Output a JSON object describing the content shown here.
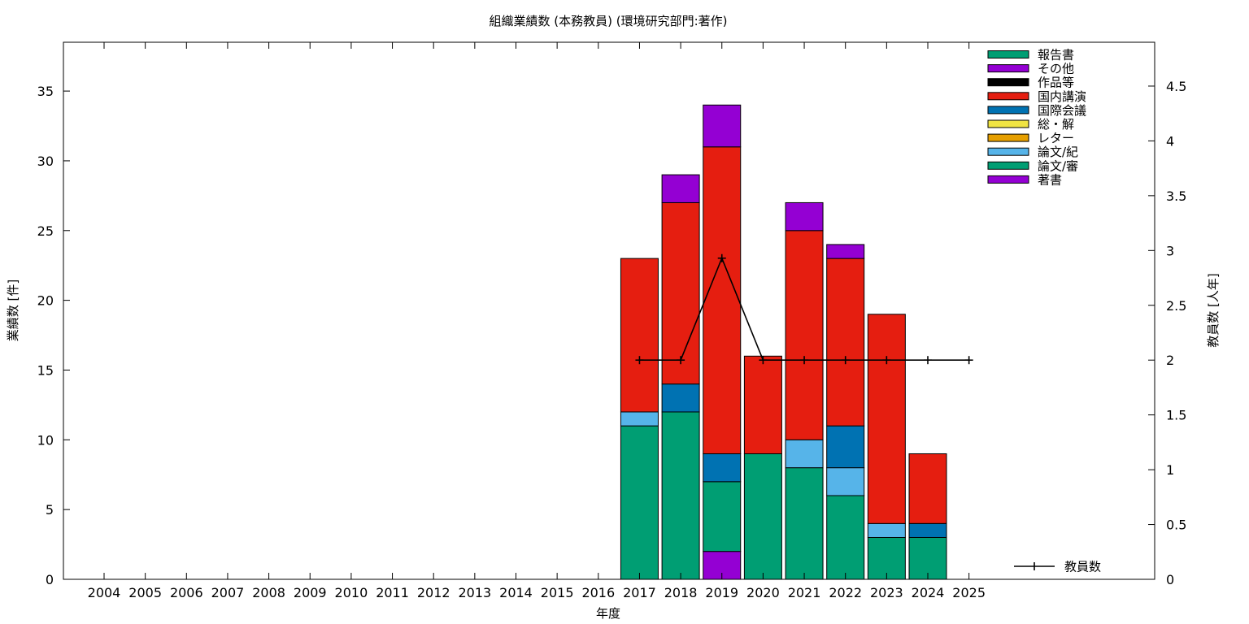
{
  "chart_data": {
    "type": "bar",
    "title": "組織業績数 (本務教員) (環境研究部門:著作)",
    "xlabel": "年度",
    "ylabel": "業績数 [件]",
    "y2label": "教員数 [人年]",
    "categories": [
      "2004",
      "2005",
      "2006",
      "2007",
      "2008",
      "2009",
      "2010",
      "2011",
      "2012",
      "2013",
      "2014",
      "2015",
      "2016",
      "2017",
      "2018",
      "2019",
      "2020",
      "2021",
      "2022",
      "2023",
      "2024",
      "2025"
    ],
    "ylim": [
      0,
      38.5
    ],
    "yticks": [
      0,
      5,
      10,
      15,
      20,
      25,
      30,
      35
    ],
    "y2lim": [
      0,
      4.9
    ],
    "y2ticks": [
      "0",
      "0.5",
      "1",
      "1.5",
      "2",
      "2.5",
      "3",
      "3.5",
      "4",
      "4.5"
    ],
    "stacked": true,
    "legend_position": "top-right",
    "series": [
      {
        "name": "著書",
        "color": "#9400d3",
        "values": [
          0,
          0,
          0,
          0,
          0,
          0,
          0,
          0,
          0,
          0,
          0,
          0,
          0,
          0,
          0,
          2,
          0,
          0,
          0,
          0,
          0,
          0
        ]
      },
      {
        "name": "論文/審",
        "color": "#009e73",
        "values": [
          0,
          0,
          0,
          0,
          0,
          0,
          0,
          0,
          0,
          0,
          0,
          0,
          0,
          11,
          12,
          5,
          9,
          8,
          6,
          3,
          3,
          0
        ]
      },
      {
        "name": "論文/紀",
        "color": "#56b4e9",
        "values": [
          0,
          0,
          0,
          0,
          0,
          0,
          0,
          0,
          0,
          0,
          0,
          0,
          0,
          1,
          0,
          0,
          0,
          2,
          2,
          1,
          0,
          0
        ]
      },
      {
        "name": "レター",
        "color": "#e69f00",
        "values": [
          0,
          0,
          0,
          0,
          0,
          0,
          0,
          0,
          0,
          0,
          0,
          0,
          0,
          0,
          0,
          0,
          0,
          0,
          0,
          0,
          0,
          0
        ]
      },
      {
        "name": "総・解",
        "color": "#f0e442",
        "values": [
          0,
          0,
          0,
          0,
          0,
          0,
          0,
          0,
          0,
          0,
          0,
          0,
          0,
          0,
          0,
          0,
          0,
          0,
          0,
          0,
          0,
          0
        ]
      },
      {
        "name": "国際会議",
        "color": "#0072b2",
        "values": [
          0,
          0,
          0,
          0,
          0,
          0,
          0,
          0,
          0,
          0,
          0,
          0,
          0,
          0,
          2,
          2,
          0,
          0,
          3,
          0,
          1,
          0
        ]
      },
      {
        "name": "国内講演",
        "color": "#e51e10",
        "values": [
          0,
          0,
          0,
          0,
          0,
          0,
          0,
          0,
          0,
          0,
          0,
          0,
          0,
          11,
          13,
          22,
          7,
          15,
          12,
          15,
          5,
          0
        ]
      },
      {
        "name": "作品等",
        "color": "#000000",
        "values": [
          0,
          0,
          0,
          0,
          0,
          0,
          0,
          0,
          0,
          0,
          0,
          0,
          0,
          0,
          0,
          0,
          0,
          0,
          0,
          0,
          0,
          0
        ]
      },
      {
        "name": "その他",
        "color": "#9400d3",
        "values": [
          0,
          0,
          0,
          0,
          0,
          0,
          0,
          0,
          0,
          0,
          0,
          0,
          0,
          0,
          2,
          3,
          0,
          2,
          1,
          0,
          0,
          0
        ]
      },
      {
        "name": "報告書",
        "color": "#009e73",
        "values": [
          0,
          0,
          0,
          0,
          0,
          0,
          0,
          0,
          0,
          0,
          0,
          0,
          0,
          0,
          0,
          0,
          0,
          0,
          0,
          0,
          0,
          0
        ]
      }
    ],
    "line": {
      "name": "教員数",
      "axis": "y2",
      "color": "#000000",
      "x": [
        "2017",
        "2018",
        "2019",
        "2020",
        "2021",
        "2022",
        "2023",
        "2024",
        "2025"
      ],
      "values": [
        2,
        2,
        2.93,
        2,
        2,
        2,
        2,
        2,
        2
      ]
    }
  }
}
